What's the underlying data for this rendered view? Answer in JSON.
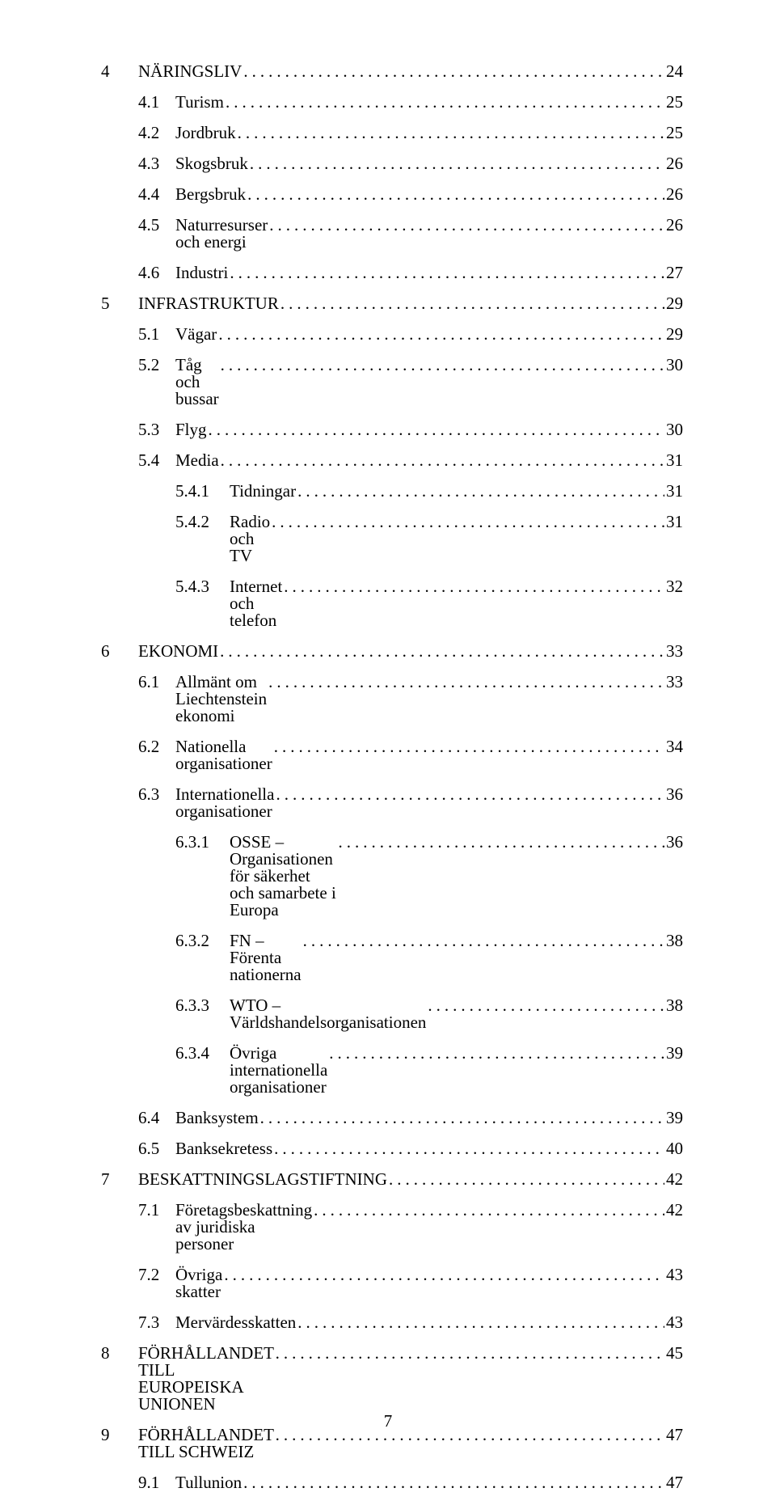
{
  "page_number": "7",
  "text_color": "#000000",
  "background_color": "#ffffff",
  "toc": [
    {
      "indent": 0,
      "num": "4",
      "title": "NÄRINGSLIV",
      "page": "24"
    },
    {
      "indent": 1,
      "num": "4.1",
      "title": "Turism",
      "page": "25"
    },
    {
      "indent": 1,
      "num": "4.2",
      "title": "Jordbruk",
      "page": "25"
    },
    {
      "indent": 1,
      "num": "4.3",
      "title": "Skogsbruk",
      "page": "26"
    },
    {
      "indent": 1,
      "num": "4.4",
      "title": "Bergsbruk",
      "page": "26"
    },
    {
      "indent": 1,
      "num": "4.5",
      "title": "Naturresurser och energi",
      "page": "26"
    },
    {
      "indent": 1,
      "num": "4.6",
      "title": "Industri",
      "page": "27"
    },
    {
      "indent": 0,
      "num": "5",
      "title": "INFRASTRUKTUR",
      "page": "29"
    },
    {
      "indent": 1,
      "num": "5.1",
      "title": "Vägar",
      "page": "29"
    },
    {
      "indent": 1,
      "num": "5.2",
      "title": "Tåg och bussar",
      "page": "30"
    },
    {
      "indent": 1,
      "num": "5.3",
      "title": "Flyg",
      "page": "30"
    },
    {
      "indent": 1,
      "num": "5.4",
      "title": "Media",
      "page": "31"
    },
    {
      "indent": 2,
      "num": "5.4.1",
      "title": "Tidningar",
      "page": "31"
    },
    {
      "indent": 2,
      "num": "5.4.2",
      "title": "Radio och TV",
      "page": "31"
    },
    {
      "indent": 2,
      "num": "5.4.3",
      "title": "Internet och telefon",
      "page": "32"
    },
    {
      "indent": 0,
      "num": "6",
      "title": "EKONOMI",
      "page": "33"
    },
    {
      "indent": 1,
      "num": "6.1",
      "title": "Allmänt om Liechtenstein ekonomi",
      "page": "33"
    },
    {
      "indent": 1,
      "num": "6.2",
      "title": "Nationella organisationer",
      "page": "34"
    },
    {
      "indent": 1,
      "num": "6.3",
      "title": "Internationella organisationer",
      "page": "36"
    },
    {
      "indent": 2,
      "num": "6.3.1",
      "title": "OSSE – Organisationen för säkerhet och samarbete i Europa",
      "page": "36"
    },
    {
      "indent": 2,
      "num": "6.3.2",
      "title": "FN – Förenta nationerna",
      "page": "38"
    },
    {
      "indent": 2,
      "num": "6.3.3",
      "title": "WTO – Världshandelsorganisationen",
      "page": "38"
    },
    {
      "indent": 2,
      "num": "6.3.4",
      "title": "Övriga internationella organisationer",
      "page": "39"
    },
    {
      "indent": 1,
      "num": "6.4",
      "title": "Banksystem",
      "page": "39"
    },
    {
      "indent": 1,
      "num": "6.5",
      "title": "Banksekretess",
      "page": "40"
    },
    {
      "indent": 0,
      "num": "7",
      "title": "BESKATTNINGSLAGSTIFTNING",
      "page": "42"
    },
    {
      "indent": 1,
      "num": "7.1",
      "title": "Företagsbeskattning av juridiska personer",
      "page": "42"
    },
    {
      "indent": 1,
      "num": "7.2",
      "title": "Övriga skatter",
      "page": "43"
    },
    {
      "indent": 1,
      "num": "7.3",
      "title": "Mervärdesskatten",
      "page": "43"
    },
    {
      "indent": 0,
      "num": "8",
      "title": "FÖRHÅLLANDET TILL EUROPEISKA UNIONEN",
      "page": "45"
    },
    {
      "indent": 0,
      "num": "9",
      "title": "FÖRHÅLLANDET TILL SCHWEIZ",
      "page": "47"
    },
    {
      "indent": 1,
      "num": "9.1",
      "title": "Tullunion",
      "page": "47"
    }
  ]
}
